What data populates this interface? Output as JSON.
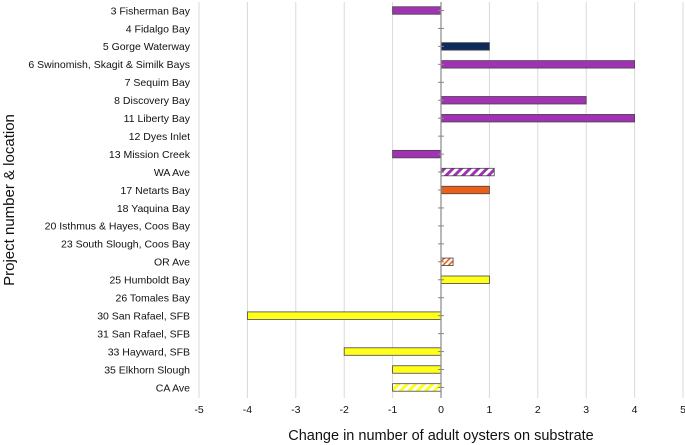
{
  "chart_data": {
    "type": "bar",
    "orientation": "horizontal",
    "title": "",
    "xlabel": "Change in number of adult oysters on substrate",
    "ylabel": "Project number & location",
    "xlim": [
      -5,
      5
    ],
    "xticks": [
      "-5",
      "-4",
      "-3",
      "-2",
      "-1",
      "0",
      "1",
      "2",
      "3",
      "4",
      "5"
    ],
    "grid": "vertical",
    "categories": [
      "3 Fisherman Bay",
      "4 Fidalgo Bay",
      "5 Gorge Waterway",
      "6 Swinomish, Skagit & Similk Bays",
      "7 Sequim Bay",
      "8 Discovery Bay",
      "11 Liberty Bay",
      "12 Dyes Inlet",
      "13 Mission Creek",
      "WA Ave",
      "17 Netarts Bay",
      "18 Yaquina Bay",
      "20 Isthmus & Hayes, Coos Bay",
      "23 South Slough, Coos Bay",
      "OR Ave",
      "25 Humboldt Bay",
      "26 Tomales Bay",
      "30 San Rafael, SFB",
      "31 San Rafael, SFB",
      "33 Hayward, SFB",
      "35 Elkhorn Slough",
      "CA Ave"
    ],
    "values": [
      -1,
      0,
      1,
      4,
      0,
      3,
      4,
      0,
      -1,
      1.1,
      1,
      0,
      0,
      0,
      0.25,
      1,
      0,
      -4,
      0,
      -2,
      -1,
      -1
    ],
    "fills": [
      "purple",
      "none",
      "navy",
      "purple",
      "none",
      "purple",
      "purple",
      "none",
      "purple",
      "purple-hatch",
      "orange",
      "none",
      "none",
      "none",
      "orange-hatch",
      "yellow",
      "none",
      "yellow",
      "none",
      "yellow",
      "yellow",
      "yellow-hatch"
    ],
    "colors": {
      "purple": "#a232b4",
      "navy": "#0f2a5c",
      "orange": "#e8601a",
      "yellow": "#ffff1a",
      "grid": "#d9d9d9",
      "axis": "#888888",
      "bar_stroke": "#444444"
    }
  }
}
